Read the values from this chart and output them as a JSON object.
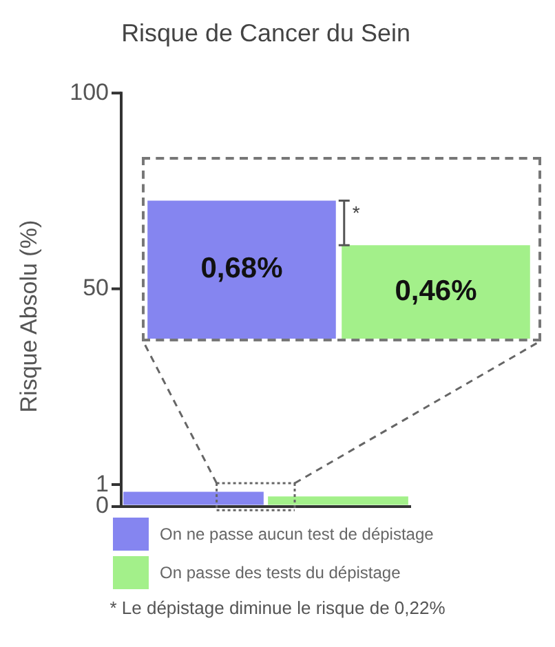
{
  "chart_data": [
    {
      "type": "other",
      "title": "Risque de Cancer du Sein",
      "ylabel": "Risque Absolu (%)",
      "annotations": [
        "100",
        "50"
      ]
    },
    {
      "type": "bar",
      "categories": [
        null
      ],
      "series": [
        {
          "name": "On ne passe aucun test de dépistage",
          "color": "#8585f0",
          "values": [
            0.68
          ]
        },
        {
          "name": "On passe des tests du dépistage",
          "color": "#a3f08a",
          "values": [
            0.46
          ]
        }
      ],
      "ylim": [
        0,
        1
      ],
      "yticks": [
        0,
        1
      ],
      "grid": false,
      "legend": "bottom",
      "annotations": [
        "* Le dépistage diminue le risque de 0,22%"
      ]
    },
    {
      "type": "bar",
      "categories": [
        null
      ],
      "series": [
        {
          "color": "#8585f0",
          "values": [
            0.68
          ],
          "value_labels": [
            "0,68%"
          ]
        },
        {
          "color": "#a3f08a",
          "values": [
            0.46
          ],
          "value_labels": [
            "0,46%"
          ]
        }
      ],
      "tick_labels": false,
      "annotations": [
        "*"
      ]
    }
  ]
}
